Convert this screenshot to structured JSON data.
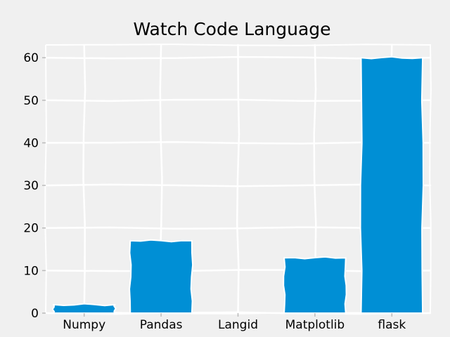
{
  "chart_data": {
    "type": "bar",
    "title": "Watch Code Language",
    "xlabel": "",
    "ylabel": "",
    "categories": [
      "Numpy",
      "Pandas",
      "Langid",
      "Matplotlib",
      "flask"
    ],
    "values": [
      2,
      17,
      0,
      13,
      60
    ],
    "ylim": [
      0,
      63
    ],
    "yticks": [
      0,
      10,
      20,
      30,
      40,
      50,
      60
    ],
    "grid": true,
    "style": "xkcd",
    "colors": {
      "bar": "#008fd5",
      "background": "#f0f0f0",
      "grid": "#ffffff",
      "text": "#000000"
    }
  }
}
